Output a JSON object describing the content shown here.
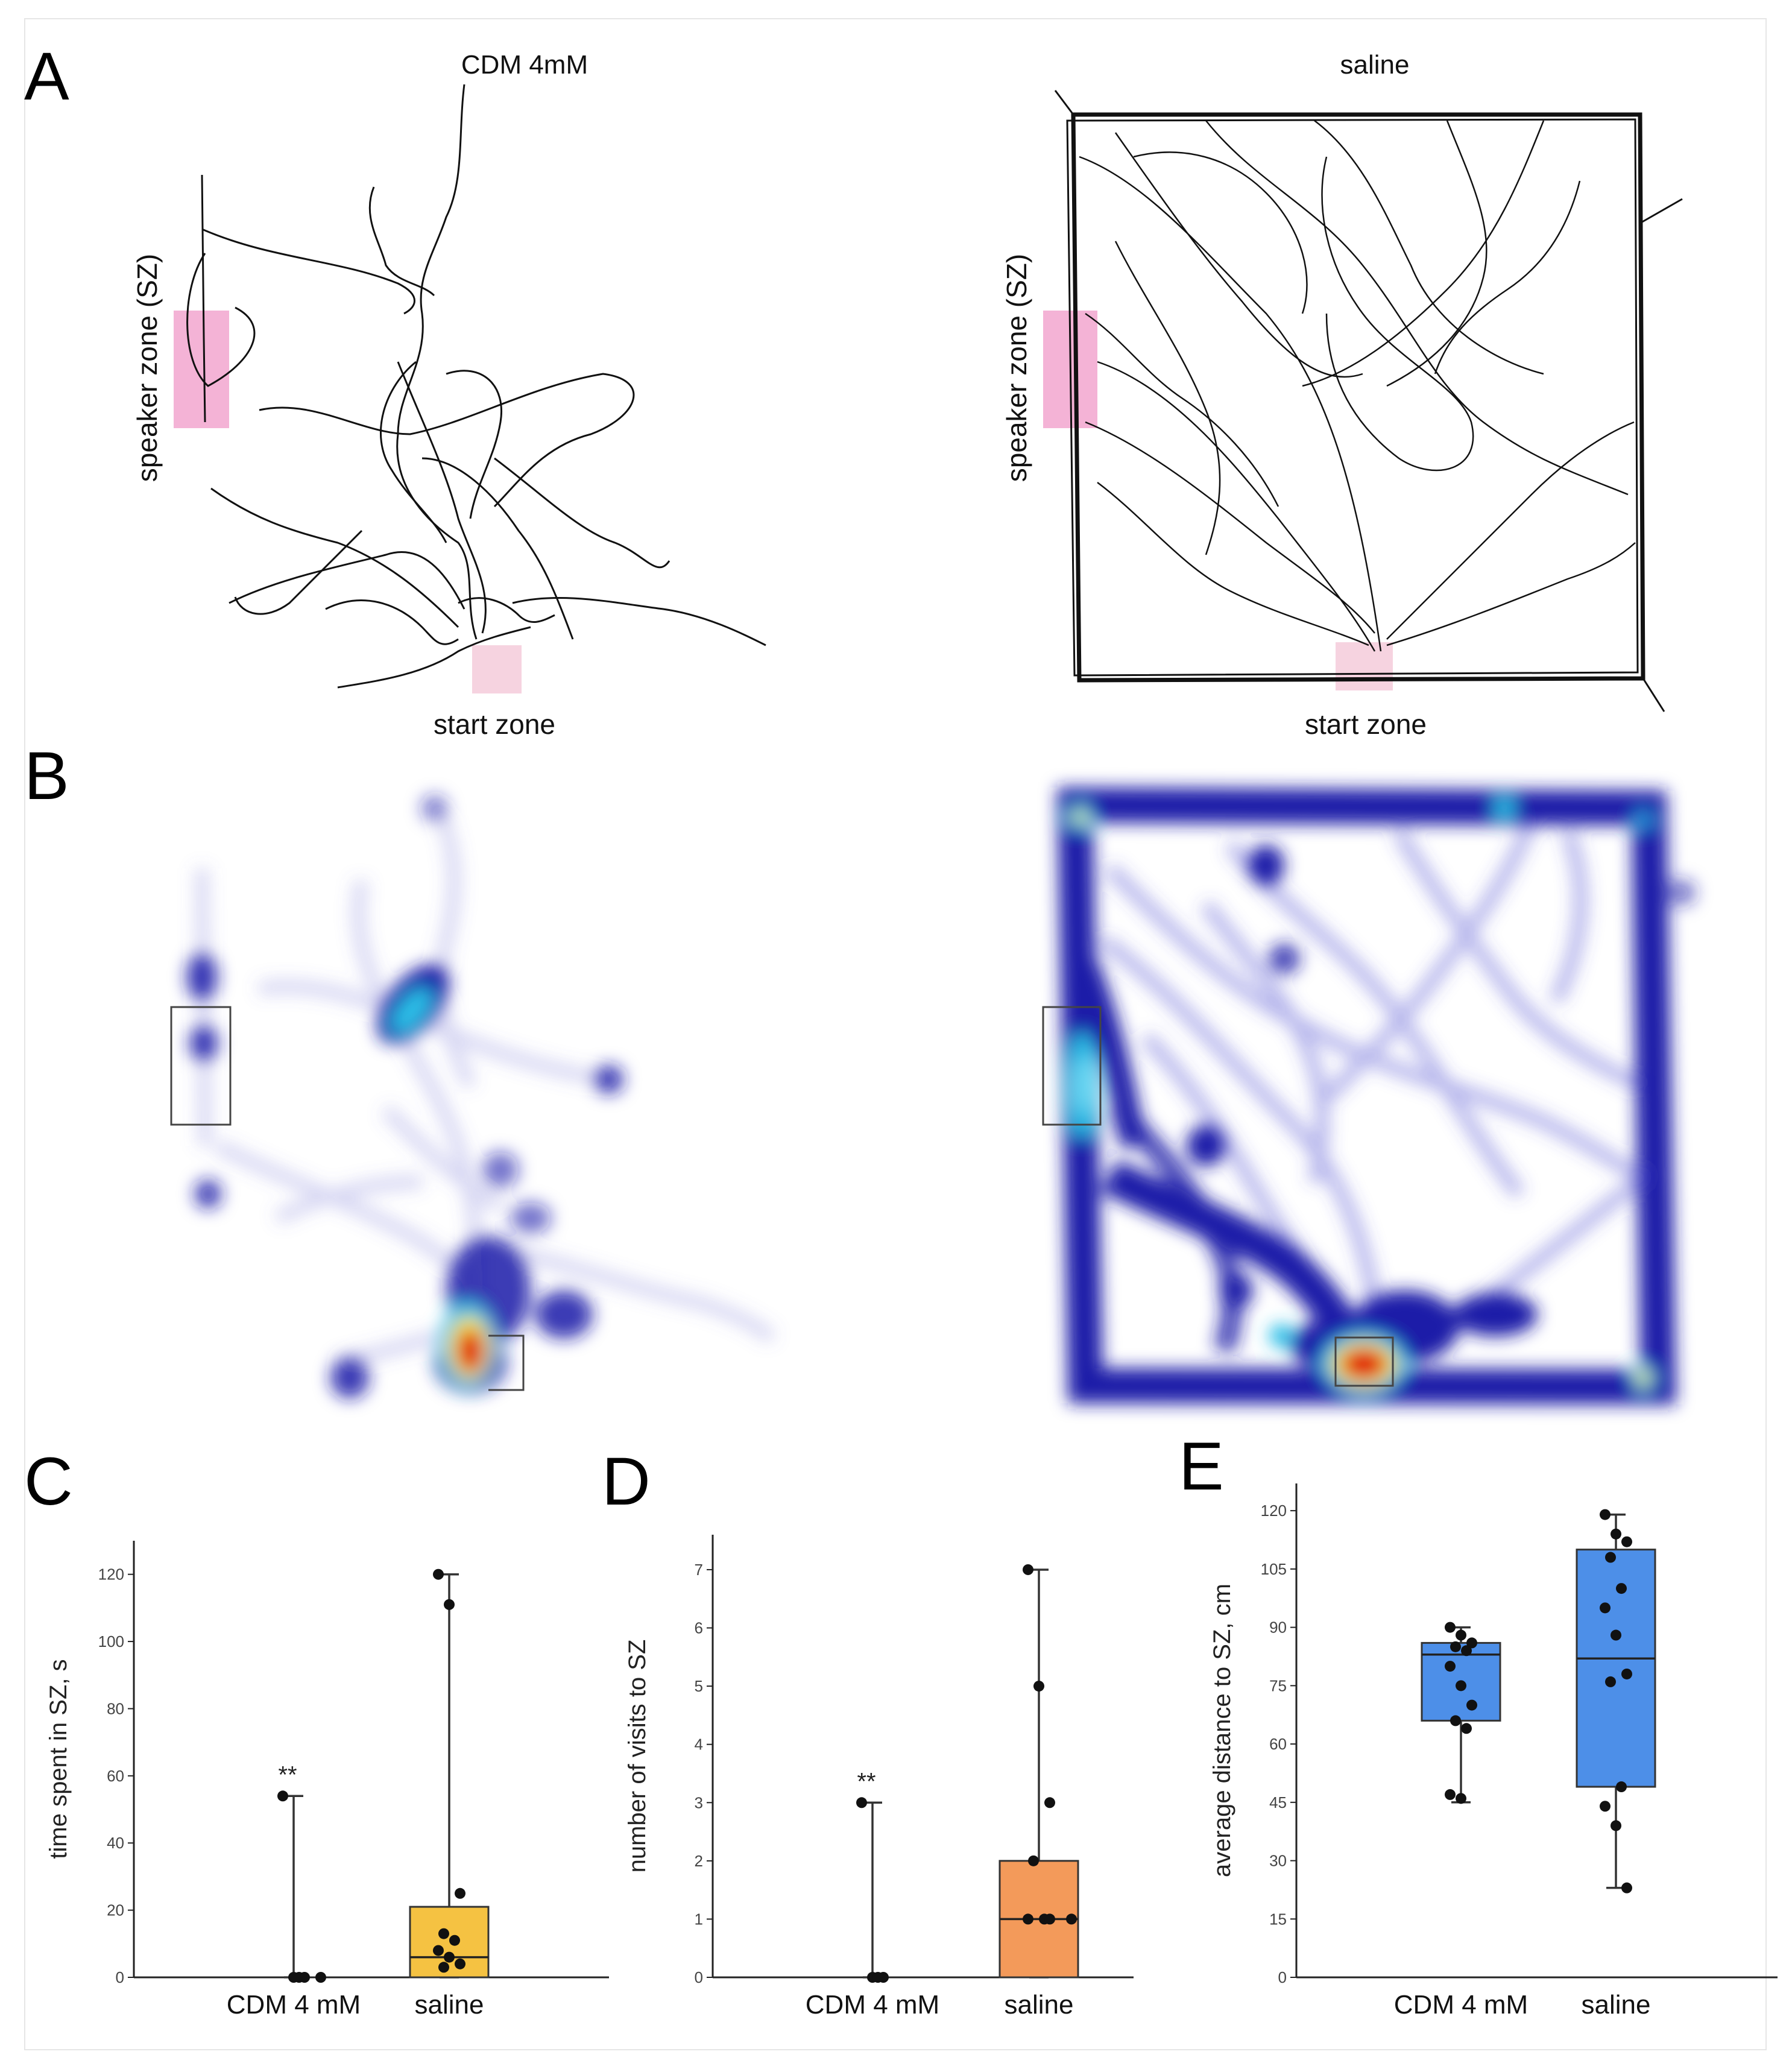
{
  "panels": {
    "A": {
      "label": "A",
      "left_title": "CDM 4mM",
      "right_title": "saline",
      "speaker_zone_label": "speaker zone (SZ)",
      "start_zone_label": "start zone"
    },
    "B": {
      "label": "B"
    },
    "C": {
      "label": "C"
    },
    "D": {
      "label": "D"
    },
    "E": {
      "label": "E"
    }
  },
  "colors": {
    "track": "#111111",
    "zone_pink": "#f2a6cf",
    "box_yellow": "#f5c242",
    "box_orange": "#f39a5a",
    "box_blue": "#4d8fe8",
    "heat_low": "#1a1aa8",
    "heat_high": "#e01010"
  },
  "chart_data": [
    {
      "panel": "C",
      "type": "box",
      "ylabel": "time spent in SZ, s",
      "ylim": [
        0,
        130
      ],
      "yticks": [
        "0",
        "20",
        "40",
        "60",
        "80",
        "100",
        "120"
      ],
      "categories": [
        "CDM 4 mM",
        "saline"
      ],
      "significance": [
        {
          "category": "CDM 4 mM",
          "text": "**"
        }
      ],
      "boxes": [
        {
          "category": "CDM 4 mM",
          "min": 0,
          "q1": 0,
          "median": 0,
          "q3": 0,
          "max": 54
        },
        {
          "category": "saline",
          "min": 0,
          "q1": 0,
          "median": 6,
          "q3": 21,
          "max": 120
        }
      ],
      "points": [
        {
          "category": "CDM 4 mM",
          "values": [
            54,
            0,
            0,
            0,
            0
          ]
        },
        {
          "category": "saline",
          "values": [
            120,
            111,
            25,
            13,
            11,
            8,
            6,
            4,
            3
          ]
        }
      ]
    },
    {
      "panel": "D",
      "type": "box",
      "ylabel": "number of visits to SZ",
      "ylim": [
        0,
        7.6
      ],
      "yticks": [
        "0",
        "1",
        "2",
        "3",
        "4",
        "5",
        "6",
        "7"
      ],
      "categories": [
        "CDM 4 mM",
        "saline"
      ],
      "significance": [
        {
          "category": "CDM 4 mM",
          "text": "**"
        }
      ],
      "boxes": [
        {
          "category": "CDM 4 mM",
          "min": 0,
          "q1": 0,
          "median": 0,
          "q3": 0,
          "max": 3
        },
        {
          "category": "saline",
          "min": 0,
          "q1": 0,
          "median": 1,
          "q3": 2,
          "max": 7
        }
      ],
      "points": [
        {
          "category": "CDM 4 mM",
          "values": [
            3,
            0,
            0,
            0
          ]
        },
        {
          "category": "saline",
          "values": [
            7,
            5,
            3,
            2,
            1,
            1,
            1,
            1
          ]
        }
      ]
    },
    {
      "panel": "E",
      "type": "box",
      "ylabel": "average distance to SZ, cm",
      "ylim": [
        0,
        127
      ],
      "yticks": [
        "0",
        "15",
        "30",
        "45",
        "60",
        "75",
        "90",
        "105",
        "120"
      ],
      "categories": [
        "CDM 4 mM",
        "saline"
      ],
      "boxes": [
        {
          "category": "CDM 4 mM",
          "min": 45,
          "q1": 66,
          "median": 83,
          "q3": 86,
          "max": 90
        },
        {
          "category": "saline",
          "min": 23,
          "q1": 49,
          "median": 82,
          "q3": 110,
          "max": 119
        }
      ],
      "points": [
        {
          "category": "CDM 4 mM",
          "values": [
            90,
            88,
            86,
            85,
            84,
            80,
            75,
            70,
            66,
            64,
            47,
            46
          ]
        },
        {
          "category": "saline",
          "values": [
            119,
            114,
            112,
            108,
            100,
            95,
            88,
            78,
            76,
            49,
            44,
            39,
            23
          ]
        }
      ]
    }
  ]
}
